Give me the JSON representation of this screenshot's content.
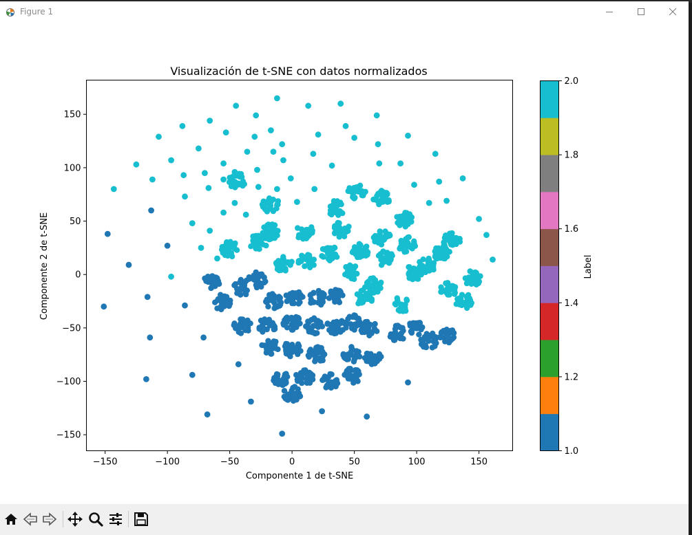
{
  "window": {
    "title": "Figure 1",
    "controls": [
      "minimize-icon",
      "maximize-icon",
      "close-icon"
    ]
  },
  "toolbar": {
    "buttons": [
      "home-icon",
      "back-icon",
      "forward-icon",
      "pan-icon",
      "zoom-icon",
      "configure-subplots-icon",
      "save-icon"
    ]
  },
  "chart_data": {
    "type": "scatter",
    "title": "Visualización de t-SNE con datos normalizados",
    "xlabel": "Componente 1 de t-SNE",
    "ylabel": "Componente 2 de t-SNE",
    "xlim": [
      -165,
      177
    ],
    "ylim": [
      -165,
      182
    ],
    "xticks": [
      -150,
      -100,
      -50,
      0,
      50,
      100,
      150
    ],
    "yticks": [
      -150,
      -100,
      -50,
      0,
      50,
      100,
      150
    ],
    "xtick_labels": [
      "−150",
      "−100",
      "−50",
      "0",
      "50",
      "100",
      "150"
    ],
    "ytick_labels": [
      "−150",
      "−100",
      "−50",
      "0",
      "50",
      "100",
      "150"
    ],
    "grid": false,
    "colormap": "tab10",
    "color_by": "label",
    "colors": {
      "label_1": "#1f77b4",
      "label_2": "#17becf"
    },
    "colorbar": {
      "label": "Label",
      "range": [
        1.0,
        2.0
      ],
      "ticks": [
        1.0,
        1.2,
        1.4,
        1.6,
        1.8,
        2.0
      ],
      "tick_labels": [
        "1.0",
        "1.2",
        "1.4",
        "1.6",
        "1.8",
        "2.0"
      ],
      "segments": [
        "#1f77b4",
        "#ff7f0e",
        "#2ca02c",
        "#d62728",
        "#9467bd",
        "#8c564b",
        "#e377c2",
        "#7f7f7f",
        "#bcbd22",
        "#17becf"
      ]
    },
    "clusters": [
      {
        "label": 2,
        "x": -44,
        "y": 88
      },
      {
        "label": 2,
        "x": -17,
        "y": 65
      },
      {
        "label": 2,
        "x": -50,
        "y": 24
      },
      {
        "label": 2,
        "x": -27,
        "y": 30
      },
      {
        "label": 2,
        "x": -17,
        "y": 40
      },
      {
        "label": 2,
        "x": -7,
        "y": 10
      },
      {
        "label": 2,
        "x": 10,
        "y": 40
      },
      {
        "label": 2,
        "x": 12,
        "y": 12
      },
      {
        "label": 2,
        "x": 30,
        "y": 20
      },
      {
        "label": 2,
        "x": 40,
        "y": 42
      },
      {
        "label": 2,
        "x": 35,
        "y": 62
      },
      {
        "label": 2,
        "x": 52,
        "y": 78
      },
      {
        "label": 2,
        "x": 72,
        "y": 72
      },
      {
        "label": 2,
        "x": 55,
        "y": 22
      },
      {
        "label": 2,
        "x": 72,
        "y": 35
      },
      {
        "label": 2,
        "x": 75,
        "y": 15
      },
      {
        "label": 2,
        "x": 90,
        "y": 52
      },
      {
        "label": 2,
        "x": 92,
        "y": 28
      },
      {
        "label": 2,
        "x": 108,
        "y": 8
      },
      {
        "label": 2,
        "x": 120,
        "y": 20
      },
      {
        "label": 2,
        "x": 128,
        "y": 32
      },
      {
        "label": 2,
        "x": 138,
        "y": -25
      },
      {
        "label": 2,
        "x": 125,
        "y": -15
      },
      {
        "label": 2,
        "x": 145,
        "y": -3
      },
      {
        "label": 2,
        "x": 65,
        "y": -10
      },
      {
        "label": 2,
        "x": 58,
        "y": -22
      },
      {
        "label": 2,
        "x": 88,
        "y": -28
      },
      {
        "label": 2,
        "x": 98,
        "y": 2
      },
      {
        "label": 2,
        "x": 48,
        "y": 2
      },
      {
        "label": 1,
        "x": -65,
        "y": -8
      },
      {
        "label": 1,
        "x": -40,
        "y": -12
      },
      {
        "label": 1,
        "x": -28,
        "y": -5
      },
      {
        "label": 1,
        "x": -56,
        "y": -26
      },
      {
        "label": 1,
        "x": -40,
        "y": -48
      },
      {
        "label": 1,
        "x": -20,
        "y": -48
      },
      {
        "label": 1,
        "x": -15,
        "y": -25
      },
      {
        "label": 1,
        "x": 2,
        "y": -22
      },
      {
        "label": 1,
        "x": 20,
        "y": -22
      },
      {
        "label": 1,
        "x": 35,
        "y": -20
      },
      {
        "label": 1,
        "x": 0,
        "y": -45
      },
      {
        "label": 1,
        "x": 18,
        "y": -48
      },
      {
        "label": 1,
        "x": 35,
        "y": -48
      },
      {
        "label": 1,
        "x": 48,
        "y": -45
      },
      {
        "label": 1,
        "x": -18,
        "y": -68
      },
      {
        "label": 1,
        "x": 0,
        "y": -70
      },
      {
        "label": 1,
        "x": 20,
        "y": -75
      },
      {
        "label": 1,
        "x": 48,
        "y": -75
      },
      {
        "label": 1,
        "x": 65,
        "y": -78
      },
      {
        "label": 1,
        "x": -10,
        "y": -97
      },
      {
        "label": 1,
        "x": 10,
        "y": -96
      },
      {
        "label": 1,
        "x": 30,
        "y": -100
      },
      {
        "label": 1,
        "x": 48,
        "y": -95
      },
      {
        "label": 1,
        "x": 0,
        "y": -112
      },
      {
        "label": 1,
        "x": 85,
        "y": -55
      },
      {
        "label": 1,
        "x": 100,
        "y": -50
      },
      {
        "label": 1,
        "x": 110,
        "y": -62
      },
      {
        "label": 1,
        "x": 125,
        "y": -58
      },
      {
        "label": 1,
        "x": 62,
        "y": -50
      }
    ],
    "points": [
      {
        "label": 1,
        "x": -148,
        "y": 38
      },
      {
        "label": 1,
        "x": -113,
        "y": 60
      },
      {
        "label": 1,
        "x": -100,
        "y": 27
      },
      {
        "label": 1,
        "x": -131,
        "y": 9
      },
      {
        "label": 1,
        "x": -151,
        "y": -30
      },
      {
        "label": 1,
        "x": -116,
        "y": -21
      },
      {
        "label": 1,
        "x": -86,
        "y": -29
      },
      {
        "label": 1,
        "x": -114,
        "y": -59
      },
      {
        "label": 1,
        "x": -71,
        "y": -59
      },
      {
        "label": 1,
        "x": -117,
        "y": -98
      },
      {
        "label": 1,
        "x": -80,
        "y": -94
      },
      {
        "label": 1,
        "x": -43,
        "y": -84
      },
      {
        "label": 1,
        "x": -68,
        "y": -131
      },
      {
        "label": 1,
        "x": -33,
        "y": -119
      },
      {
        "label": 1,
        "x": -8,
        "y": -149
      },
      {
        "label": 1,
        "x": 24,
        "y": -128
      },
      {
        "label": 1,
        "x": 60,
        "y": -133
      },
      {
        "label": 1,
        "x": 93,
        "y": -101
      },
      {
        "label": 2,
        "x": -143,
        "y": 80
      },
      {
        "label": 2,
        "x": -125,
        "y": 103
      },
      {
        "label": 2,
        "x": -112,
        "y": 89
      },
      {
        "label": 2,
        "x": -107,
        "y": 129
      },
      {
        "label": 2,
        "x": -97,
        "y": 107
      },
      {
        "label": 2,
        "x": -88,
        "y": 139
      },
      {
        "label": 2,
        "x": -87,
        "y": 93
      },
      {
        "label": 2,
        "x": -86,
        "y": 73
      },
      {
        "label": 2,
        "x": -75,
        "y": 118
      },
      {
        "label": 2,
        "x": -66,
        "y": 144
      },
      {
        "label": 2,
        "x": -70,
        "y": 95
      },
      {
        "label": 2,
        "x": -67,
        "y": 81
      },
      {
        "label": 2,
        "x": -55,
        "y": 104
      },
      {
        "label": 2,
        "x": -53,
        "y": 133
      },
      {
        "label": 2,
        "x": -45,
        "y": 158
      },
      {
        "label": 2,
        "x": -36,
        "y": 115
      },
      {
        "label": 2,
        "x": -29,
        "y": 149
      },
      {
        "label": 2,
        "x": -30,
        "y": 129
      },
      {
        "label": 2,
        "x": -17,
        "y": 135
      },
      {
        "label": 2,
        "x": -12,
        "y": 165
      },
      {
        "label": 2,
        "x": -8,
        "y": 122
      },
      {
        "label": 2,
        "x": 13,
        "y": 158
      },
      {
        "label": 2,
        "x": 21,
        "y": 131
      },
      {
        "label": 2,
        "x": 39,
        "y": 160
      },
      {
        "label": 2,
        "x": 43,
        "y": 139
      },
      {
        "label": 2,
        "x": 50,
        "y": 128
      },
      {
        "label": 2,
        "x": 68,
        "y": 149
      },
      {
        "label": 2,
        "x": 69,
        "y": 122
      },
      {
        "label": 2,
        "x": 70,
        "y": 104
      },
      {
        "label": 2,
        "x": 87,
        "y": 104
      },
      {
        "label": 2,
        "x": 93,
        "y": 130
      },
      {
        "label": 2,
        "x": 98,
        "y": 84
      },
      {
        "label": 2,
        "x": 115,
        "y": 113
      },
      {
        "label": 2,
        "x": 118,
        "y": 87
      },
      {
        "label": 2,
        "x": 110,
        "y": 67
      },
      {
        "label": 2,
        "x": 124,
        "y": 69
      },
      {
        "label": 2,
        "x": 137,
        "y": 90
      },
      {
        "label": 2,
        "x": 150,
        "y": 52
      },
      {
        "label": 2,
        "x": 156,
        "y": 37
      },
      {
        "label": 2,
        "x": 161,
        "y": 14
      },
      {
        "label": 2,
        "x": -80,
        "y": 48
      },
      {
        "label": 2,
        "x": -66,
        "y": 41
      },
      {
        "label": 2,
        "x": -73,
        "y": 25
      },
      {
        "label": 2,
        "x": -60,
        "y": 15
      },
      {
        "label": 2,
        "x": -97,
        "y": -2
      },
      {
        "label": 2,
        "x": -55,
        "y": 89
      },
      {
        "label": 2,
        "x": -46,
        "y": 96
      },
      {
        "label": 2,
        "x": -28,
        "y": 98
      },
      {
        "label": 2,
        "x": -27,
        "y": 82
      },
      {
        "label": 2,
        "x": -7,
        "y": 107
      },
      {
        "label": 2,
        "x": -1,
        "y": 90
      },
      {
        "label": 2,
        "x": 4,
        "y": 68
      },
      {
        "label": 2,
        "x": 18,
        "y": 80
      },
      {
        "label": 2,
        "x": 17,
        "y": 113
      },
      {
        "label": 2,
        "x": 32,
        "y": 102
      },
      {
        "label": 2,
        "x": -55,
        "y": 58
      },
      {
        "label": 2,
        "x": -46,
        "y": 67
      },
      {
        "label": 2,
        "x": -37,
        "y": 56
      },
      {
        "label": 2,
        "x": -15,
        "y": 115
      },
      {
        "label": 2,
        "x": -12,
        "y": 80
      }
    ]
  }
}
